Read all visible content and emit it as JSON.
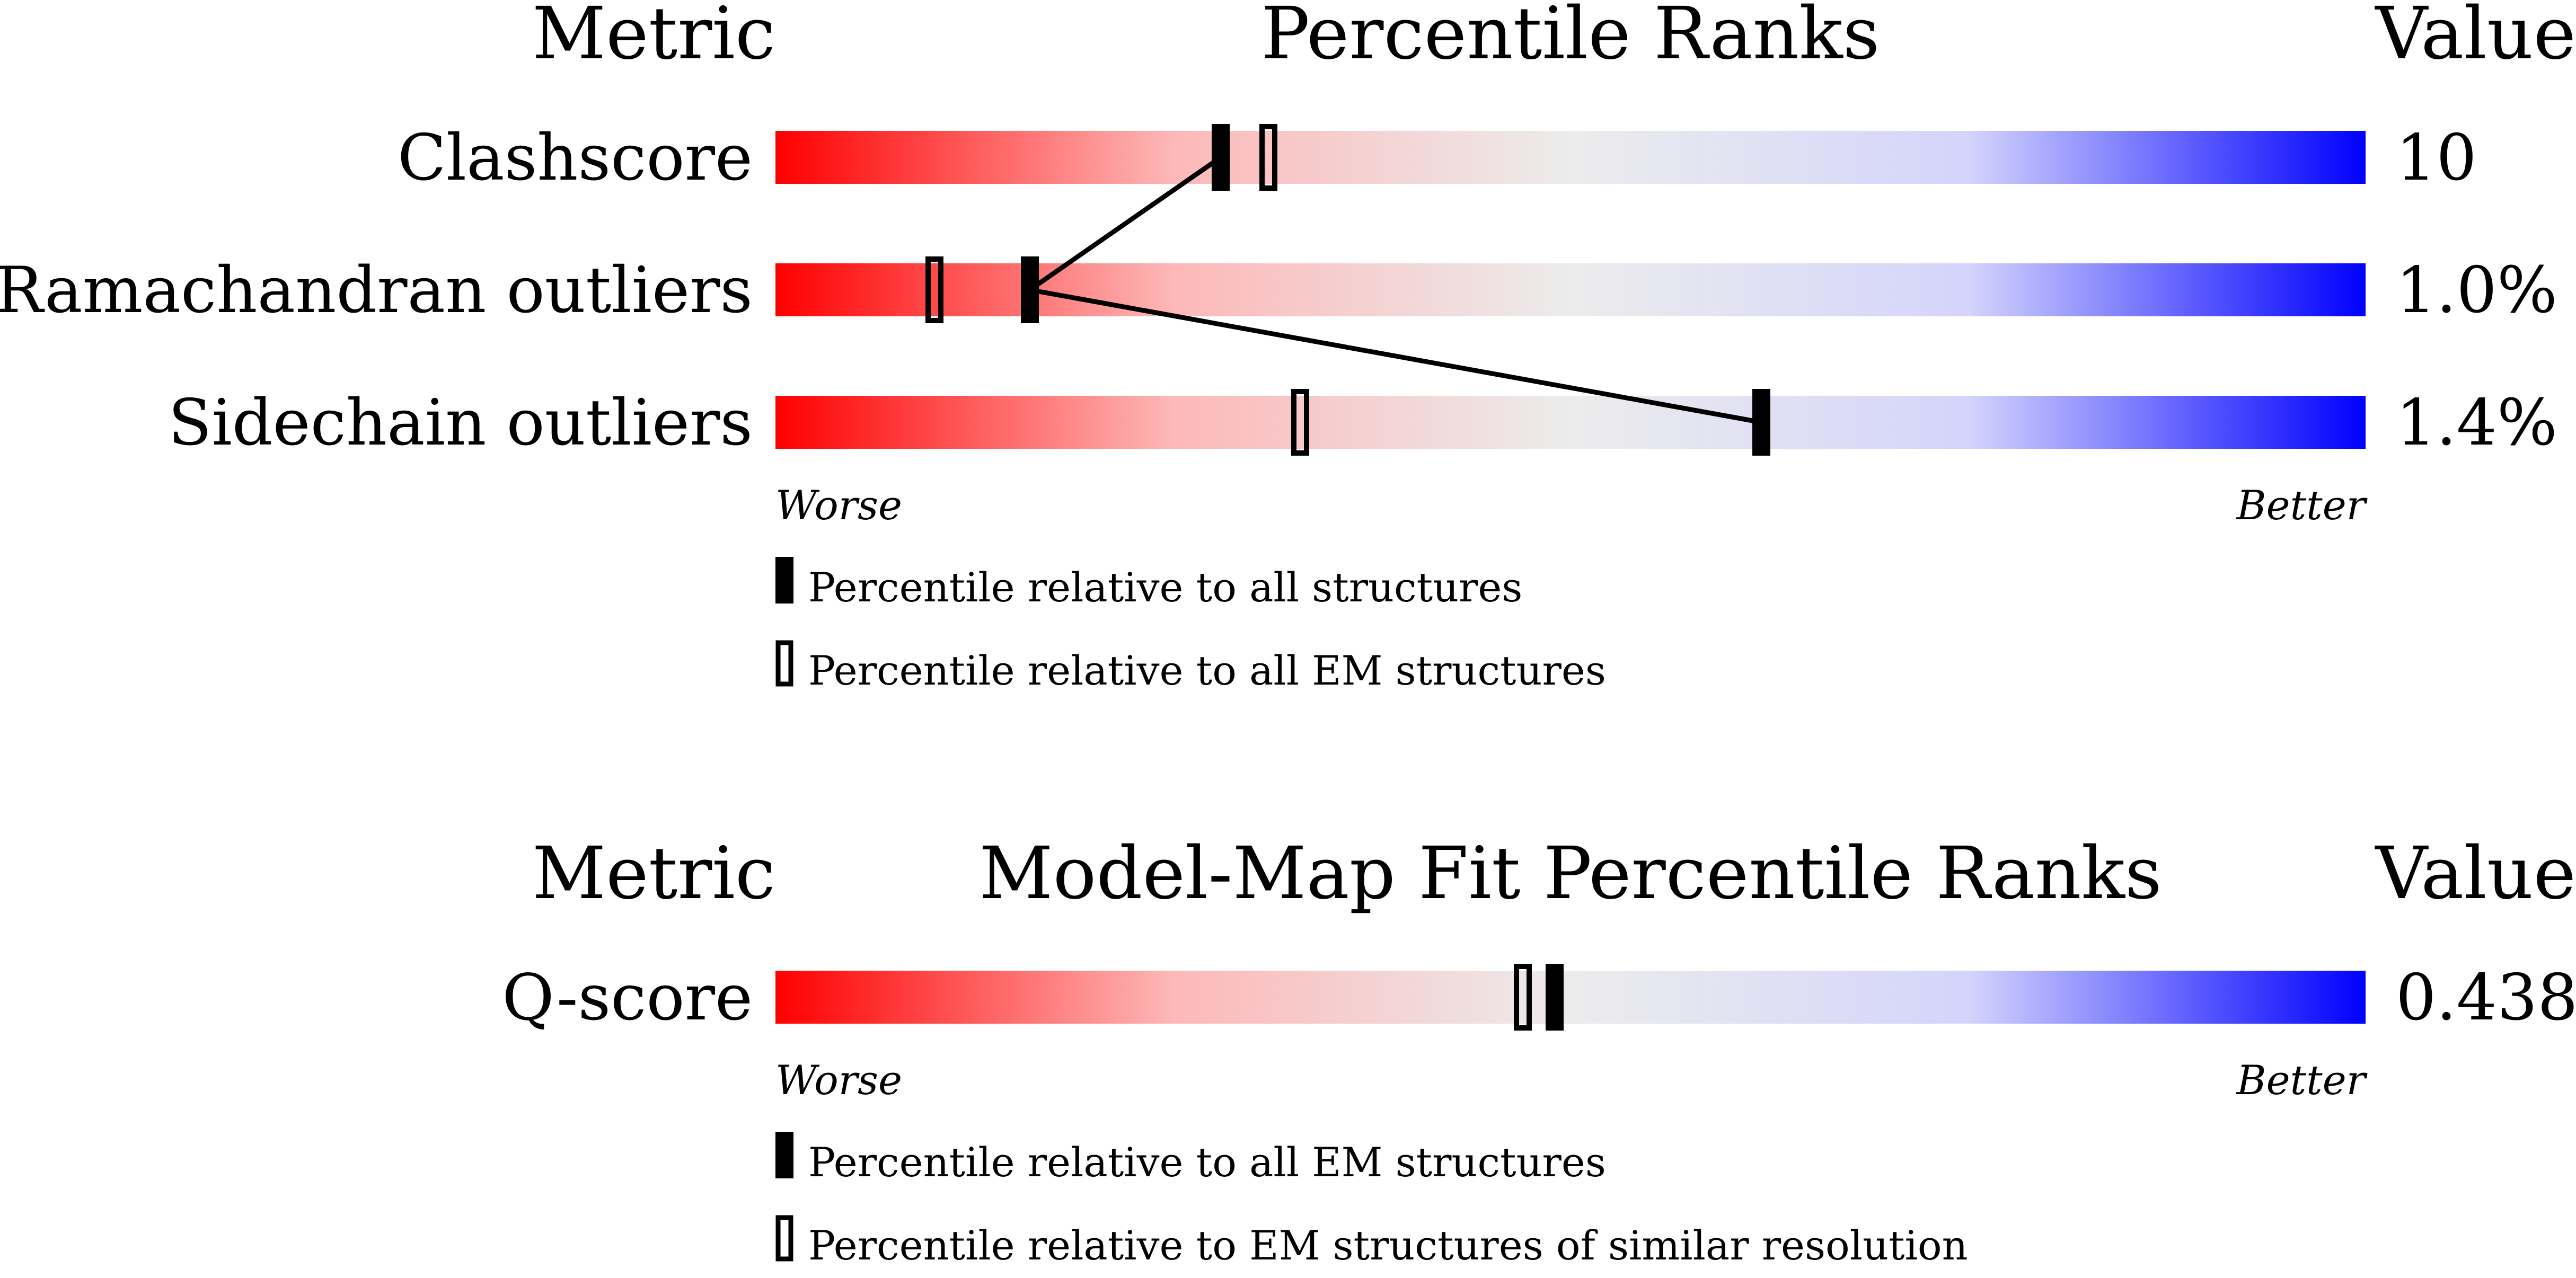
{
  "panels": [
    {
      "header_metric": "Metric",
      "header_title": "Percentile Ranks",
      "header_value": "Value",
      "rows": [
        {
          "metric": "Clashscore",
          "value": "10",
          "pct_all": 28,
          "pct_em": 31
        },
        {
          "metric": "Ramachandran outliers",
          "value": "1.0%",
          "pct_all": 16,
          "pct_em": 10
        },
        {
          "metric": "Sidechain outliers",
          "value": "1.4%",
          "pct_all": 62,
          "pct_em": 33
        }
      ],
      "worse_label": "Worse",
      "better_label": "Better",
      "legend_filled": "Percentile relative to all structures",
      "legend_open": "Percentile relative to all EM structures",
      "connect_filled": true
    },
    {
      "header_metric": "Metric",
      "header_title": "Model-Map Fit Percentile Ranks",
      "header_value": "Value",
      "rows": [
        {
          "metric": "Q-score",
          "value": "0.438",
          "pct_all": 49,
          "pct_em": 47
        }
      ],
      "worse_label": "Worse",
      "better_label": "Better",
      "legend_filled": "Percentile relative to all EM structures",
      "legend_open": "Percentile relative to EM structures of similar resolution",
      "connect_filled": false
    }
  ],
  "chart_data": {
    "type": "bar",
    "categories": [
      "Clashscore",
      "Ramachandran outliers",
      "Sidechain outliers",
      "Q-score"
    ],
    "series": [
      {
        "name": "Percentile relative to all structures",
        "values": [
          28,
          16,
          62,
          null
        ]
      },
      {
        "name": "Percentile relative to all EM structures",
        "values": [
          31,
          10,
          33,
          49
        ]
      },
      {
        "name": "Percentile relative to EM structures of similar resolution",
        "values": [
          null,
          null,
          null,
          47
        ]
      }
    ],
    "metric_values": [
      "10",
      "1.0%",
      "1.4%",
      "0.438"
    ],
    "xlim": [
      0,
      100
    ],
    "gradient": [
      "#ff0000",
      "#eeeeee",
      "#0000ff"
    ]
  }
}
